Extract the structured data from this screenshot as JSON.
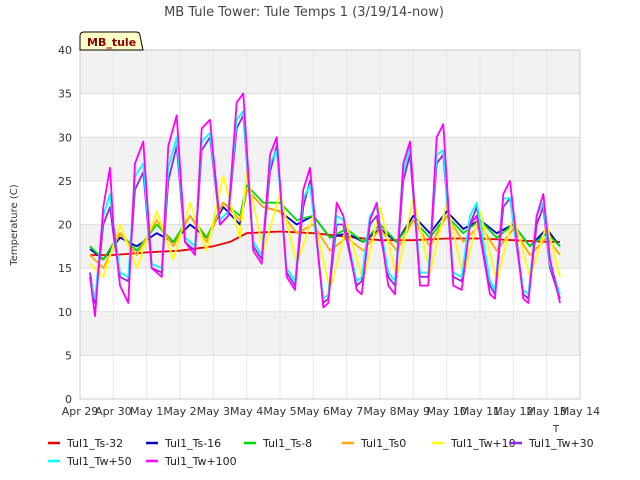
{
  "chart_data": {
    "type": "line",
    "title": "MB Tule Tower: Tule Temps 1 (3/19/14-now)",
    "ylabel": "Temperature (C)",
    "xlabel": "",
    "xlabel_fragment": "T",
    "badge": "MB_tule",
    "ylim": [
      0,
      40
    ],
    "xlim": [
      0,
      15
    ],
    "yticks": [
      0,
      5,
      10,
      15,
      20,
      25,
      30,
      35,
      40
    ],
    "xticks": [
      {
        "pos": 0,
        "label": "Apr 29"
      },
      {
        "pos": 1,
        "label": "Apr 30"
      },
      {
        "pos": 2,
        "label": "May 1"
      },
      {
        "pos": 3,
        "label": "May 2"
      },
      {
        "pos": 4,
        "label": "May 3"
      },
      {
        "pos": 5,
        "label": "May 4"
      },
      {
        "pos": 6,
        "label": "May 5"
      },
      {
        "pos": 7,
        "label": "May 6"
      },
      {
        "pos": 8,
        "label": "May 7"
      },
      {
        "pos": 9,
        "label": "May 8"
      },
      {
        "pos": 10,
        "label": "May 9"
      },
      {
        "pos": 11,
        "label": "May 10"
      },
      {
        "pos": 12,
        "label": "May 11"
      },
      {
        "pos": 13,
        "label": "May 12"
      },
      {
        "pos": 14,
        "label": "May 13"
      },
      {
        "pos": 15,
        "label": "May 14"
      }
    ],
    "grid": true,
    "legend_position": "bottom",
    "series": [
      {
        "name": "Tul1_Ts-32",
        "color": "#ee0000",
        "x": [
          0.3,
          1,
          2,
          3,
          4,
          4.5,
          5,
          6,
          7,
          8,
          9,
          10,
          11,
          12,
          13,
          14,
          14.4
        ],
        "y": [
          16.5,
          16.5,
          16.8,
          17.0,
          17.5,
          18.0,
          19.0,
          19.2,
          19.0,
          18.6,
          18.2,
          18.2,
          18.4,
          18.4,
          18.2,
          18.0,
          18.0
        ]
      },
      {
        "name": "Tul1_Ts-16",
        "color": "#0000cc",
        "x": [
          0.3,
          0.7,
          1.2,
          1.7,
          2.3,
          2.8,
          3.3,
          3.8,
          4.3,
          4.8,
          5.0,
          5.5,
          6.0,
          6.5,
          7.0,
          7.5,
          8.0,
          8.5,
          9.0,
          9.5,
          10.0,
          10.5,
          11.0,
          11.5,
          12.0,
          12.5,
          13.0,
          13.5,
          14.0,
          14.4
        ],
        "y": [
          17.2,
          16.0,
          18.5,
          17.5,
          19.0,
          18.0,
          20.0,
          18.5,
          22.0,
          20.0,
          24.0,
          22.0,
          21.5,
          20.0,
          21.0,
          18.5,
          19.0,
          18.0,
          19.5,
          18.0,
          21.0,
          19.0,
          21.5,
          19.5,
          20.5,
          19.0,
          20.0,
          17.5,
          19.5,
          17.5
        ]
      },
      {
        "name": "Tul1_Ts-8",
        "color": "#00dd00",
        "x": [
          0.3,
          0.7,
          1.2,
          1.7,
          2.3,
          2.8,
          3.3,
          3.8,
          4.3,
          4.8,
          5.0,
          5.5,
          6.0,
          6.5,
          7.0,
          7.5,
          8.0,
          8.5,
          9.0,
          9.5,
          10.0,
          10.5,
          11.0,
          11.5,
          12.0,
          12.5,
          13.0,
          13.5,
          14.0,
          14.4
        ],
        "y": [
          17.5,
          16.0,
          19.0,
          17.0,
          20.0,
          18.0,
          21.0,
          18.5,
          22.5,
          21.0,
          24.5,
          22.5,
          22.5,
          20.5,
          21.0,
          18.5,
          19.5,
          18.0,
          20.0,
          18.0,
          20.5,
          18.5,
          21.0,
          19.0,
          20.5,
          18.5,
          20.0,
          17.5,
          19.0,
          17.5
        ]
      },
      {
        "name": "Tul1_Ts0",
        "color": "#ffaa00",
        "x": [
          0.3,
          0.7,
          1.2,
          1.7,
          2.3,
          2.8,
          3.3,
          3.8,
          4.3,
          4.8,
          5.0,
          5.5,
          6.0,
          6.5,
          7.0,
          7.5,
          8.0,
          8.5,
          9.0,
          9.5,
          10.0,
          10.5,
          11.0,
          11.5,
          12.0,
          12.5,
          13.0,
          13.5,
          14.0,
          14.4
        ],
        "y": [
          16.5,
          15.0,
          19.0,
          16.5,
          20.5,
          17.5,
          21.0,
          18.0,
          22.5,
          20.5,
          24.0,
          22.0,
          21.5,
          19.0,
          20.0,
          17.0,
          18.5,
          17.0,
          19.5,
          17.0,
          20.5,
          17.5,
          21.0,
          18.0,
          20.0,
          17.0,
          19.5,
          16.5,
          18.5,
          16.5
        ]
      },
      {
        "name": "Tul1_Tw+10",
        "color": "#ffff00",
        "x": [
          0.3,
          0.7,
          1.2,
          1.7,
          2.3,
          2.8,
          3.3,
          3.8,
          4.3,
          4.8,
          5.0,
          5.5,
          6.0,
          6.5,
          7.0,
          7.5,
          8.0,
          8.5,
          9.0,
          9.5,
          10.0,
          10.5,
          11.0,
          11.5,
          12.0,
          12.5,
          13.0,
          13.5,
          14.0,
          14.4
        ],
        "y": [
          15.5,
          14.0,
          20.0,
          15.0,
          21.5,
          16.0,
          22.5,
          17.0,
          25.5,
          18.5,
          26.0,
          17.0,
          23.5,
          15.5,
          21.0,
          12.5,
          20.0,
          13.5,
          22.0,
          14.0,
          23.0,
          14.5,
          22.5,
          14.0,
          21.5,
          13.5,
          21.0,
          14.0,
          20.0,
          14.0
        ]
      },
      {
        "name": "Tul1_Tw+30",
        "color": "#8a2be2",
        "x": [
          0.3,
          0.45,
          0.7,
          0.9,
          1.0,
          1.2,
          1.45,
          1.65,
          1.9,
          2.15,
          2.45,
          2.65,
          2.9,
          3.15,
          3.45,
          3.65,
          3.9,
          4.2,
          4.45,
          4.7,
          4.9,
          5.2,
          5.45,
          5.7,
          5.9,
          6.2,
          6.45,
          6.7,
          6.9,
          7.3,
          7.45,
          7.7,
          7.9,
          8.3,
          8.45,
          8.7,
          8.9,
          9.25,
          9.45,
          9.7,
          9.9,
          10.2,
          10.45,
          10.7,
          10.9,
          11.2,
          11.45,
          11.7,
          11.9,
          12.3,
          12.45,
          12.7,
          12.9,
          13.3,
          13.45,
          13.7,
          13.9,
          14.1,
          14.4
        ],
        "y": [
          14.5,
          11.0,
          20.0,
          22.0,
          19.0,
          14.0,
          13.5,
          24.0,
          26.0,
          15.0,
          14.5,
          25.0,
          29.0,
          18.0,
          17.0,
          28.5,
          30.0,
          20.0,
          21.0,
          31.0,
          32.5,
          17.5,
          16.0,
          26.0,
          29.0,
          14.5,
          13.0,
          22.0,
          25.0,
          11.0,
          11.5,
          20.0,
          20.0,
          13.0,
          13.5,
          20.0,
          21.0,
          14.0,
          13.0,
          25.0,
          28.0,
          14.0,
          14.0,
          27.0,
          28.0,
          14.0,
          13.5,
          20.0,
          22.0,
          13.0,
          12.0,
          22.0,
          23.0,
          12.0,
          11.5,
          20.0,
          22.0,
          15.0,
          11.5
        ]
      },
      {
        "name": "Tul1_Tw+50",
        "color": "#00ffff",
        "x": [
          0.3,
          0.45,
          0.7,
          0.9,
          1.0,
          1.2,
          1.45,
          1.65,
          1.9,
          2.15,
          2.45,
          2.65,
          2.9,
          3.15,
          3.45,
          3.65,
          3.9,
          4.2,
          4.45,
          4.7,
          4.9,
          5.2,
          5.45,
          5.7,
          5.9,
          6.2,
          6.45,
          6.7,
          6.9,
          7.3,
          7.45,
          7.7,
          7.9,
          8.3,
          8.45,
          8.7,
          8.9,
          9.25,
          9.45,
          9.7,
          9.9,
          10.2,
          10.45,
          10.7,
          10.9,
          11.2,
          11.45,
          11.7,
          11.9,
          12.3,
          12.45,
          12.7,
          12.9,
          13.3,
          13.45,
          13.7,
          13.9,
          14.1,
          14.4
        ],
        "y": [
          14.0,
          11.5,
          21.0,
          23.5,
          20.0,
          14.5,
          14.0,
          25.5,
          27.0,
          15.5,
          15.0,
          26.5,
          30.0,
          18.5,
          17.5,
          29.5,
          30.5,
          20.5,
          21.5,
          32.0,
          33.0,
          18.0,
          16.5,
          27.0,
          28.5,
          15.0,
          13.5,
          23.0,
          24.5,
          11.5,
          12.0,
          21.0,
          20.5,
          13.5,
          14.0,
          21.0,
          22.0,
          14.5,
          13.5,
          26.0,
          29.0,
          14.5,
          14.5,
          28.0,
          28.5,
          14.5,
          14.0,
          21.0,
          22.5,
          13.5,
          12.5,
          23.0,
          23.0,
          12.5,
          12.0,
          21.0,
          22.5,
          15.5,
          12.0
        ]
      },
      {
        "name": "Tul1_Tw+100",
        "color": "#ff00ff",
        "x": [
          0.3,
          0.45,
          0.7,
          0.9,
          1.0,
          1.2,
          1.45,
          1.65,
          1.9,
          2.15,
          2.45,
          2.65,
          2.9,
          3.15,
          3.45,
          3.65,
          3.9,
          4.2,
          4.45,
          4.7,
          4.9,
          5.2,
          5.45,
          5.7,
          5.9,
          6.2,
          6.45,
          6.7,
          6.9,
          7.3,
          7.45,
          7.7,
          7.9,
          8.3,
          8.45,
          8.7,
          8.9,
          9.25,
          9.45,
          9.7,
          9.9,
          10.2,
          10.45,
          10.7,
          10.9,
          11.2,
          11.45,
          11.7,
          11.9,
          12.3,
          12.45,
          12.7,
          12.9,
          13.3,
          13.45,
          13.7,
          13.9,
          14.1,
          14.4
        ],
        "y": [
          14.0,
          9.5,
          22.0,
          26.5,
          20.0,
          13.0,
          11.0,
          27.0,
          29.5,
          15.0,
          14.0,
          29.0,
          32.5,
          18.0,
          16.5,
          31.0,
          32.0,
          20.0,
          21.0,
          34.0,
          35.0,
          17.0,
          15.5,
          28.0,
          30.0,
          14.0,
          12.5,
          24.0,
          26.5,
          10.5,
          11.0,
          22.5,
          21.0,
          12.5,
          12.0,
          20.5,
          22.5,
          13.0,
          12.0,
          27.0,
          29.5,
          13.0,
          13.0,
          30.0,
          31.5,
          13.0,
          12.5,
          20.0,
          21.0,
          12.0,
          11.5,
          23.5,
          25.0,
          11.5,
          11.0,
          21.0,
          23.5,
          16.0,
          11.0
        ]
      }
    ]
  }
}
